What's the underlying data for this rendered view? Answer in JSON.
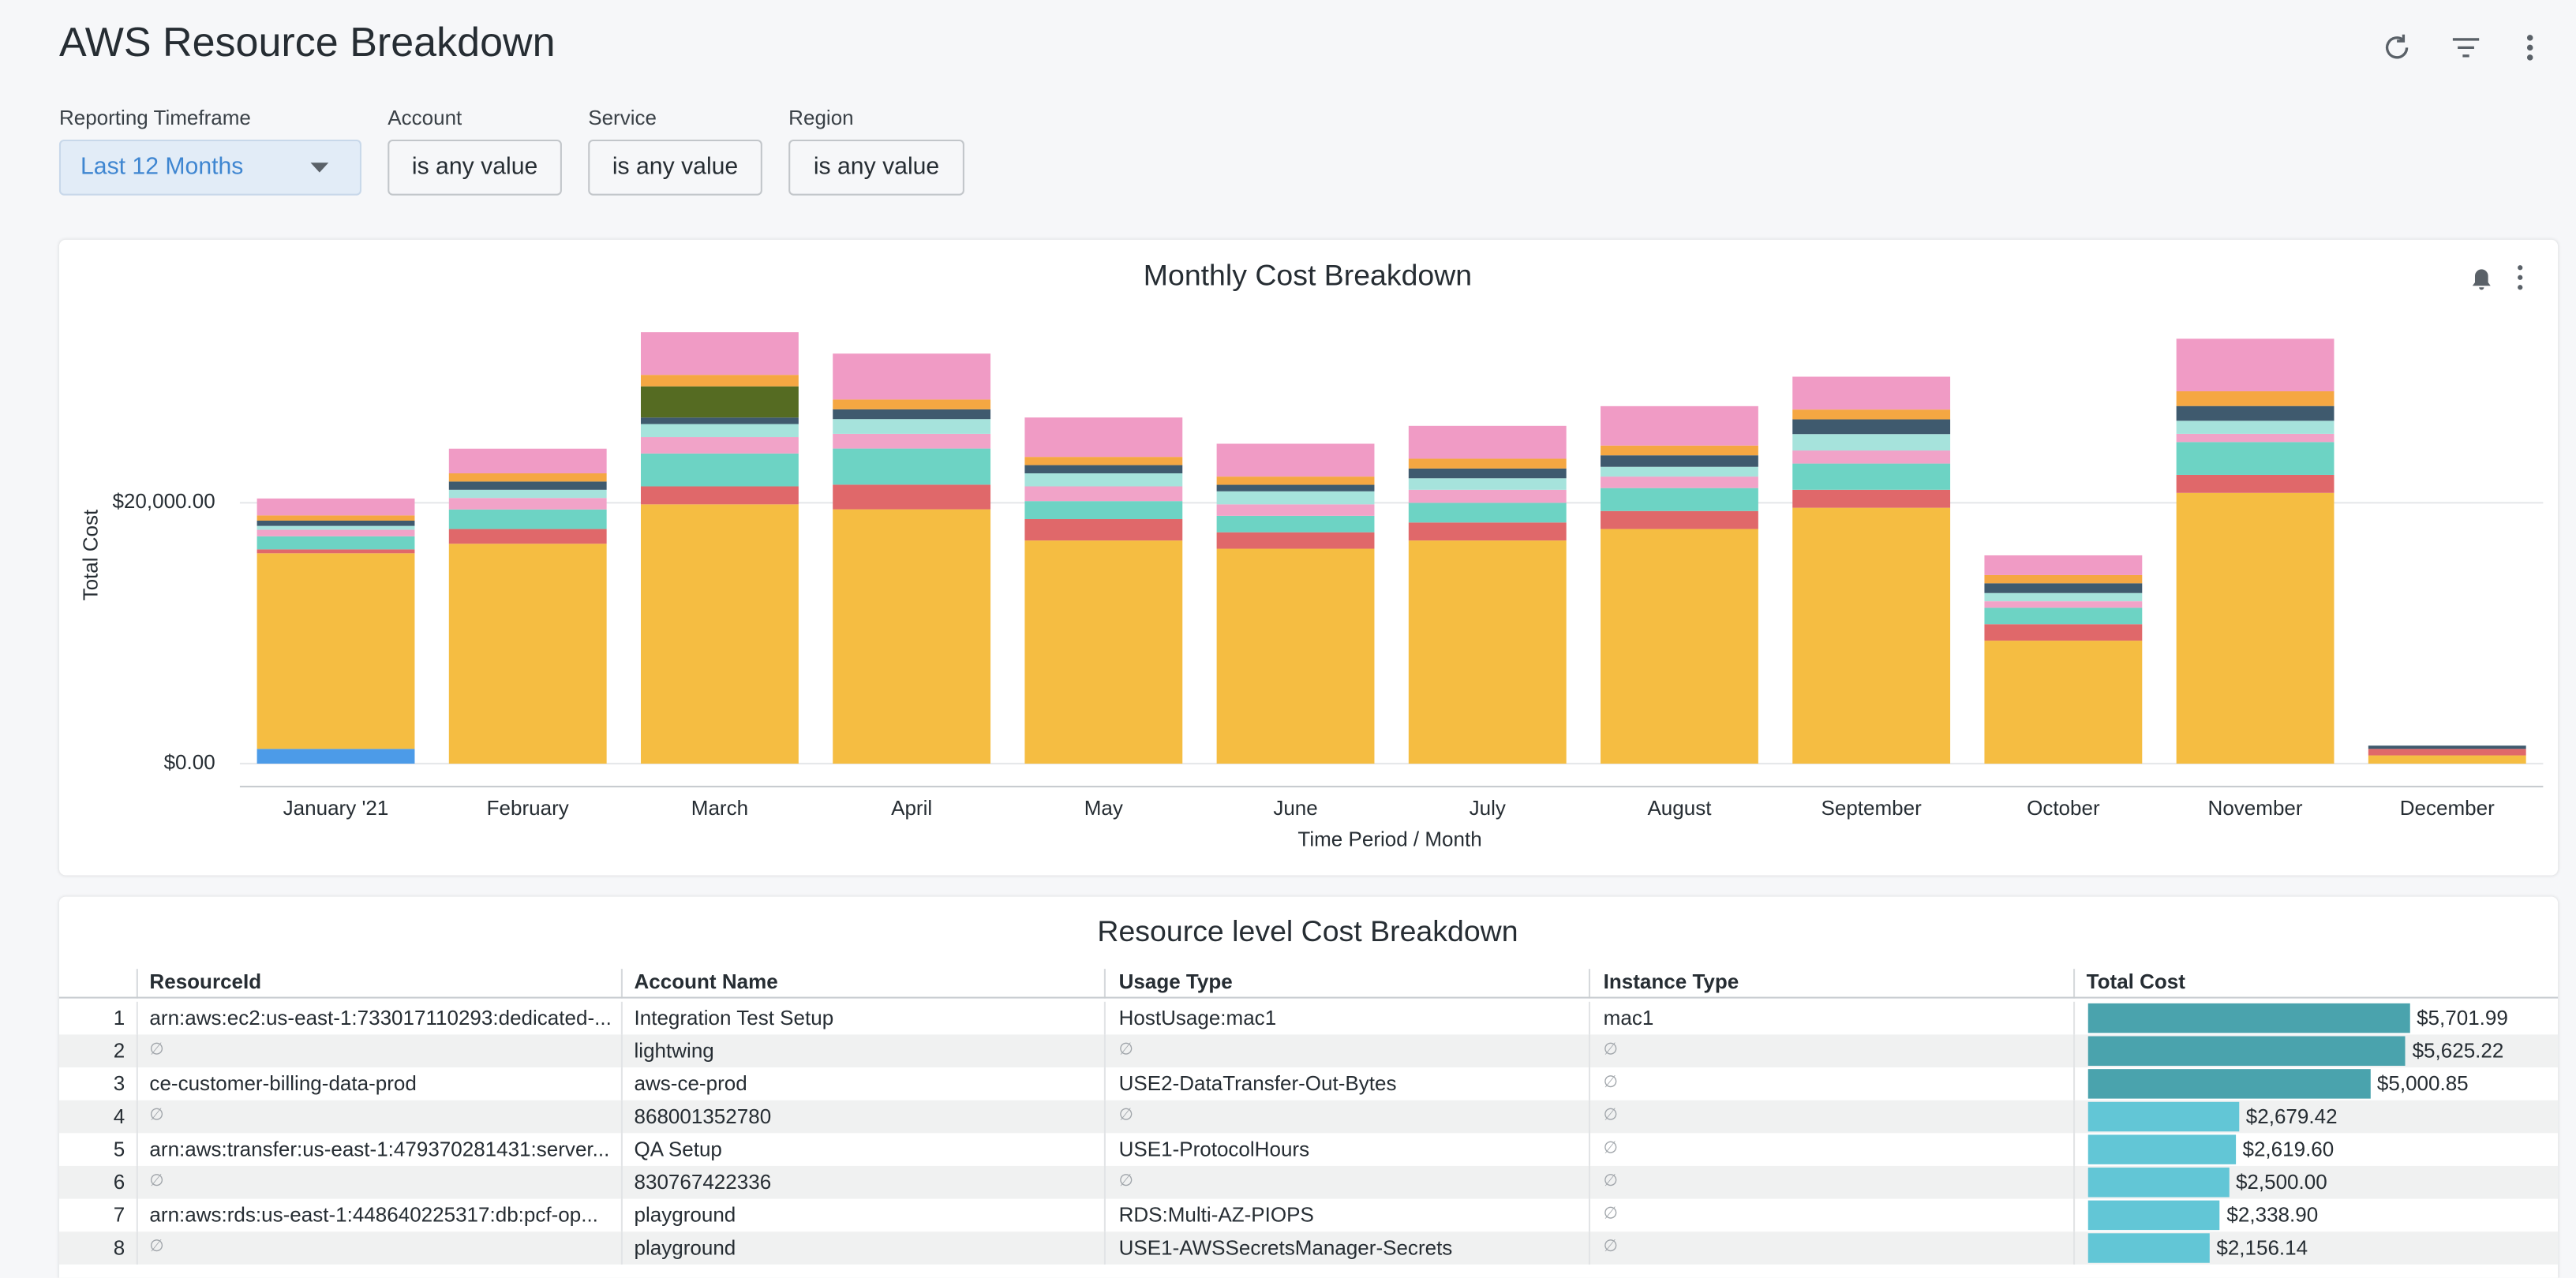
{
  "header": {
    "title": "AWS Resource Breakdown"
  },
  "filters": [
    {
      "label": "Reporting Timeframe",
      "value": "Last 12 Months"
    },
    {
      "label": "Account",
      "value": "is any value"
    },
    {
      "label": "Service",
      "value": "is any value"
    },
    {
      "label": "Region",
      "value": "is any value"
    }
  ],
  "chart_data": {
    "type": "stacked_bar",
    "title": "Monthly Cost Breakdown",
    "x_label": "Time Period / Month",
    "y_label": "Total Cost",
    "categories": [
      "January '21",
      "February",
      "March",
      "April",
      "May",
      "June",
      "July",
      "August",
      "September",
      "October",
      "November",
      "December"
    ],
    "ylim": [
      0,
      34000
    ],
    "yticks": [
      {
        "value": 0,
        "label": "$0.00"
      },
      {
        "value": 20000,
        "label": "$20,000.00"
      }
    ],
    "grid": true,
    "series": [
      {
        "color": "#4c9be8",
        "values": [
          1130,
          0,
          0,
          0,
          0,
          0,
          0,
          0,
          0,
          0,
          0,
          0
        ]
      },
      {
        "color": "#f5bd42",
        "values": [
          15000,
          16860,
          19880,
          19500,
          17110,
          16480,
          17110,
          17990,
          19620,
          9430,
          20760,
          630
        ]
      },
      {
        "color": "#e0686a",
        "values": [
          300,
          1130,
          1380,
          1890,
          1640,
          1260,
          1380,
          1380,
          1380,
          1260,
          1380,
          500
        ]
      },
      {
        "color": "#6dd3c4",
        "values": [
          1000,
          1500,
          2520,
          2770,
          1380,
          1260,
          1510,
          1760,
          2010,
          1260,
          2520,
          0
        ]
      },
      {
        "color": "#f1a3c8",
        "values": [
          500,
          880,
          1260,
          1130,
          1130,
          880,
          1000,
          880,
          1000,
          500,
          630,
          0
        ]
      },
      {
        "color": "#a6e3dc",
        "values": [
          300,
          630,
          1000,
          1130,
          1000,
          1000,
          880,
          750,
          1260,
          630,
          1000,
          0
        ]
      },
      {
        "color": "#3f5a6e",
        "values": [
          400,
          630,
          500,
          750,
          630,
          500,
          750,
          880,
          1130,
          750,
          1130,
          250
        ]
      },
      {
        "color": "#556b22",
        "values": [
          0,
          0,
          2390,
          0,
          0,
          0,
          0,
          0,
          0,
          0,
          0,
          0
        ]
      },
      {
        "color": "#f5a742",
        "values": [
          400,
          630,
          880,
          750,
          630,
          630,
          750,
          750,
          750,
          630,
          1130,
          0
        ]
      },
      {
        "color": "#f09bc5",
        "values": [
          1300,
          1890,
          3270,
          3520,
          3020,
          2520,
          2520,
          3020,
          2520,
          1510,
          4030,
          0
        ]
      }
    ]
  },
  "table": {
    "title": "Resource level Cost Breakdown",
    "columns": [
      "ResourceId",
      "Account Name",
      "Usage Type",
      "Instance Type",
      "Total Cost"
    ],
    "rows": [
      [
        "1",
        "arn:aws:ec2:us-east-1:733017110293:dedicated-...",
        "Integration Test Setup",
        "HostUsage:mac1",
        "mac1"
      ],
      [
        "2",
        "∅",
        "lightwing",
        "∅",
        "∅"
      ],
      [
        "3",
        "ce-customer-billing-data-prod",
        "aws-ce-prod",
        "USE2-DataTransfer-Out-Bytes",
        "∅"
      ],
      [
        "4",
        "∅",
        "868001352780",
        "∅",
        "∅"
      ],
      [
        "5",
        "arn:aws:transfer:us-east-1:479370281431:server...",
        "QA Setup",
        "USE1-ProtocolHours",
        "∅"
      ],
      [
        "6",
        "∅",
        "830767422336",
        "∅",
        "∅"
      ],
      [
        "7",
        "arn:aws:rds:us-east-1:448640225317:db:pcf-op...",
        "playground",
        "RDS:Multi-AZ-PIOPS",
        "∅"
      ],
      [
        "8",
        "∅",
        "playground",
        "USE1-AWSSecretsManager-Secrets",
        "∅"
      ]
    ],
    "total_cost": {
      "values": [
        5701.99,
        5625.22,
        5000.85,
        2679.42,
        2619.6,
        2500.0,
        2338.9,
        2156.14
      ],
      "value_labels": [
        "$5,701.99",
        "$5,625.22",
        "$5,000.85",
        "$2,679.42",
        "$2,619.60",
        "$2,500.00",
        "$2,338.90",
        "$2,156.14"
      ],
      "bar_colors": [
        "#4aa3ad",
        "#4aa3ad",
        "#4aa3ad",
        "#62c6d6",
        "#62c6d6",
        "#62c6d6",
        "#62c6d6",
        "#62c6d6"
      ]
    }
  }
}
